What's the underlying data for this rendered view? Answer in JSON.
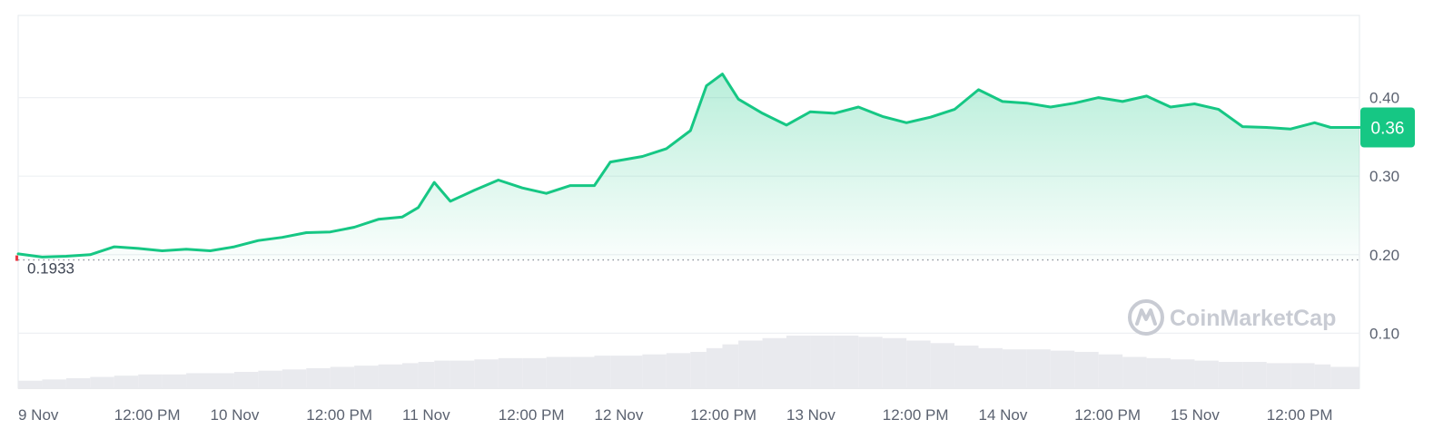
{
  "chart_data": {
    "type": "area",
    "x_tick_labels": [
      "9 Nov",
      "12:00 PM",
      "10 Nov",
      "12:00 PM",
      "11 Nov",
      "12:00 PM",
      "12 Nov",
      "12:00 PM",
      "13 Nov",
      "12:00 PM",
      "14 Nov",
      "12:00 PM",
      "15 Nov",
      "12:00 PM"
    ],
    "y_ticks": [
      0.1,
      0.2,
      0.3,
      0.4
    ],
    "y_tick_labels": [
      "0.10",
      "0.20",
      "0.30",
      "0.40"
    ],
    "ylim": [
      0.03,
      0.5
    ],
    "grid": true,
    "start_price": 0.1933,
    "start_price_label": "0.1933",
    "current_price_label": "0.36",
    "series": [
      {
        "x": [
          "2024-11-09 00:00",
          "2024-11-09 03:00",
          "2024-11-09 06:00",
          "2024-11-09 09:00",
          "2024-11-09 12:00",
          "2024-11-09 15:00",
          "2024-11-09 18:00",
          "2024-11-09 21:00",
          "2024-11-10 00:00",
          "2024-11-10 03:00",
          "2024-11-10 06:00",
          "2024-11-10 09:00",
          "2024-11-10 12:00",
          "2024-11-10 15:00",
          "2024-11-10 18:00",
          "2024-11-10 21:00",
          "2024-11-11 00:00",
          "2024-11-11 02:00",
          "2024-11-11 04:00",
          "2024-11-11 06:00",
          "2024-11-11 09:00",
          "2024-11-11 12:00",
          "2024-11-11 15:00",
          "2024-11-11 18:00",
          "2024-11-11 21:00",
          "2024-11-12 00:00",
          "2024-11-12 02:00",
          "2024-11-12 06:00",
          "2024-11-12 09:00",
          "2024-11-12 12:00",
          "2024-11-12 14:00",
          "2024-11-12 16:00",
          "2024-11-12 18:00",
          "2024-11-12 21:00",
          "2024-11-13 00:00",
          "2024-11-13 03:00",
          "2024-11-13 06:00",
          "2024-11-13 09:00",
          "2024-11-13 12:00",
          "2024-11-13 15:00",
          "2024-11-13 18:00",
          "2024-11-13 21:00",
          "2024-11-14 00:00",
          "2024-11-14 03:00",
          "2024-11-14 06:00",
          "2024-11-14 09:00",
          "2024-11-14 12:00",
          "2024-11-14 15:00",
          "2024-11-14 18:00",
          "2024-11-14 21:00",
          "2024-11-15 00:00",
          "2024-11-15 03:00",
          "2024-11-15 06:00",
          "2024-11-15 09:00",
          "2024-11-15 12:00",
          "2024-11-15 15:00",
          "2024-11-15 18:00",
          "2024-11-15 20:00"
        ],
        "y": [
          0.201,
          0.197,
          0.198,
          0.2,
          0.21,
          0.208,
          0.205,
          0.207,
          0.205,
          0.21,
          0.218,
          0.222,
          0.228,
          0.229,
          0.235,
          0.245,
          0.248,
          0.26,
          0.292,
          0.268,
          0.282,
          0.295,
          0.285,
          0.278,
          0.288,
          0.288,
          0.318,
          0.325,
          0.335,
          0.358,
          0.415,
          0.43,
          0.398,
          0.38,
          0.365,
          0.382,
          0.38,
          0.388,
          0.376,
          0.368,
          0.375,
          0.385,
          0.41,
          0.395,
          0.393,
          0.388,
          0.393,
          0.4,
          0.395,
          0.402,
          0.388,
          0.392,
          0.385,
          0.363,
          0.362,
          0.36,
          0.368,
          0.362
        ]
      }
    ],
    "volume": [
      0.006,
      0.007,
      0.008,
      0.009,
      0.01,
      0.011,
      0.011,
      0.012,
      0.012,
      0.013,
      0.014,
      0.015,
      0.016,
      0.017,
      0.018,
      0.019,
      0.02,
      0.021,
      0.022,
      0.022,
      0.023,
      0.024,
      0.024,
      0.025,
      0.025,
      0.026,
      0.026,
      0.027,
      0.028,
      0.029,
      0.032,
      0.035,
      0.038,
      0.04,
      0.042,
      0.042,
      0.042,
      0.041,
      0.04,
      0.038,
      0.036,
      0.034,
      0.032,
      0.031,
      0.031,
      0.03,
      0.029,
      0.027,
      0.025,
      0.024,
      0.023,
      0.022,
      0.021,
      0.021,
      0.02,
      0.02,
      0.019,
      0.017
    ],
    "colors": {
      "line": "#16c784",
      "badge": "#16c784",
      "grid": "#eef0f3",
      "border": "#e6e8ec",
      "volume": "#e9eaee",
      "start_marker": "#ea3943"
    }
  },
  "watermark": "CoinMarketCap"
}
